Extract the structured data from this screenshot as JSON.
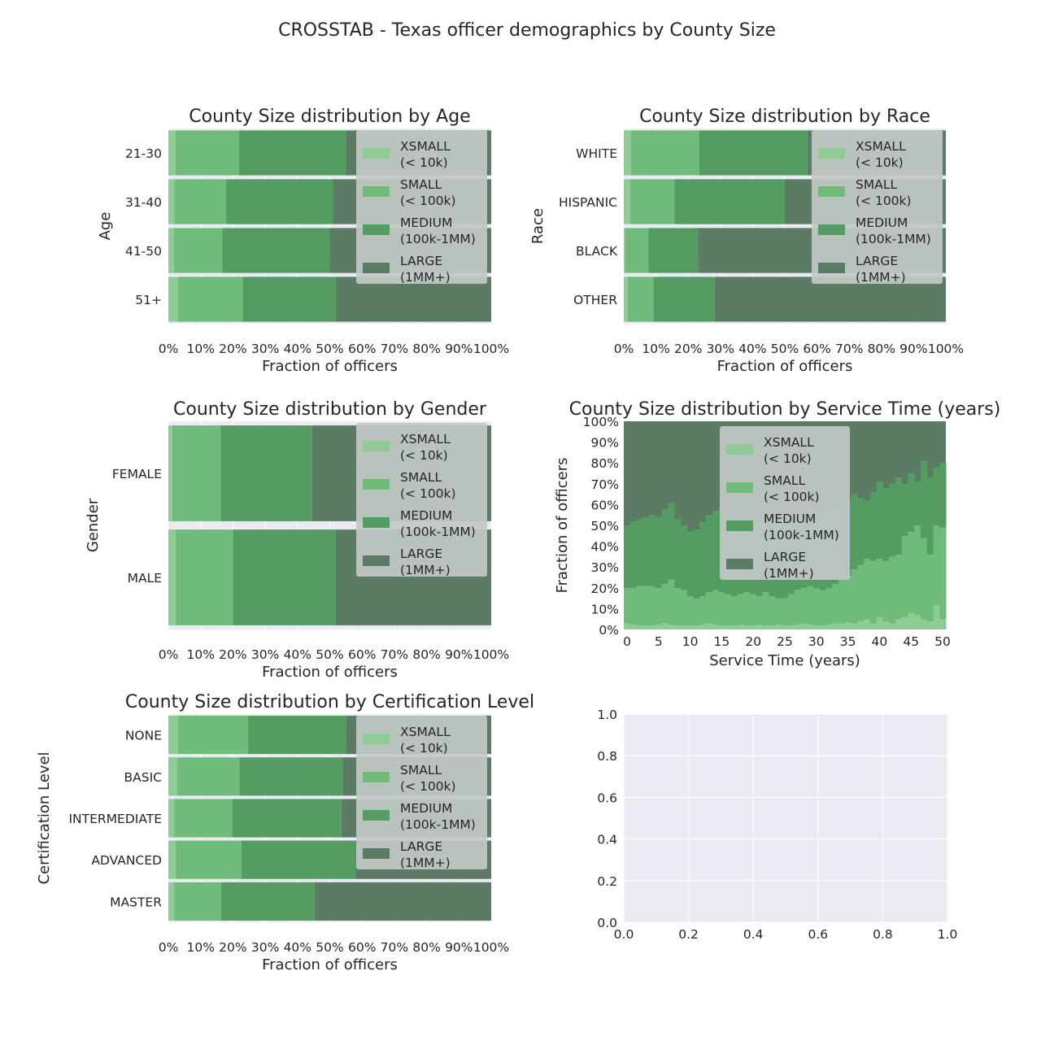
{
  "figure": {
    "suptitle": "CROSSTAB - Texas officer demographics by County Size"
  },
  "legend_labels": [
    [
      "XSMALL",
      "(< 10k)"
    ],
    [
      "SMALL",
      "(< 100k)"
    ],
    [
      "MEDIUM",
      "(100k-1MM)"
    ],
    [
      "LARGE",
      "(1MM+)"
    ]
  ],
  "colors": {
    "background": "#eaeaf2",
    "grid": "#ffffff",
    "xsmall": "#8ecb95",
    "small": "#6fbc7a",
    "medium": "#559c63",
    "large": "#5b7b64",
    "legend_bg": "#c2c8c6",
    "text": "#262626"
  },
  "chart_data": [
    {
      "type": "bar",
      "orientation": "horizontal",
      "stacked": true,
      "title": "County Size distribution by Age",
      "xlabel": "Fraction of officers",
      "ylabel": "Age",
      "categories": [
        "21-30",
        "31-40",
        "41-50",
        "51+"
      ],
      "series": [
        {
          "name": "XSMALL (< 10k)",
          "values": [
            0.022,
            0.018,
            0.017,
            0.03
          ]
        },
        {
          "name": "SMALL (< 100k)",
          "values": [
            0.197,
            0.16,
            0.15,
            0.2
          ]
        },
        {
          "name": "MEDIUM (100k-1MM)",
          "values": [
            0.331,
            0.331,
            0.333,
            0.289
          ]
        },
        {
          "name": "LARGE (1MM+)",
          "values": [
            0.45,
            0.491,
            0.5,
            0.481
          ]
        }
      ],
      "xlim": [
        0,
        1
      ],
      "xticks": [
        "0%",
        "10%",
        "20%",
        "30%",
        "40%",
        "50%",
        "60%",
        "70%",
        "80%",
        "90%",
        "100%"
      ],
      "legend": "top-right"
    },
    {
      "type": "bar",
      "orientation": "horizontal",
      "stacked": true,
      "title": "County Size distribution by Race",
      "xlabel": "Fraction of officers",
      "ylabel": "Race",
      "categories": [
        "WHITE",
        "HISPANIC",
        "BLACK",
        "OTHER"
      ],
      "series": [
        {
          "name": "XSMALL (< 10k)",
          "values": [
            0.022,
            0.02,
            0.005,
            0.012
          ]
        },
        {
          "name": "SMALL (< 100k)",
          "values": [
            0.212,
            0.137,
            0.072,
            0.08
          ]
        },
        {
          "name": "MEDIUM (100k-1MM)",
          "values": [
            0.336,
            0.343,
            0.153,
            0.19
          ]
        },
        {
          "name": "LARGE (1MM+)",
          "values": [
            0.43,
            0.5,
            0.77,
            0.718
          ]
        }
      ],
      "xlim": [
        0,
        1
      ],
      "xticks": [
        "0%",
        "10%",
        "20%",
        "30%",
        "40%",
        "50%",
        "60%",
        "70%",
        "80%",
        "90%",
        "100%"
      ],
      "legend": "top-right"
    },
    {
      "type": "bar",
      "orientation": "horizontal",
      "stacked": true,
      "title": "County Size distribution by Gender",
      "xlabel": "Fraction of officers",
      "ylabel": "Gender",
      "categories": [
        "FEMALE",
        "MALE"
      ],
      "series": [
        {
          "name": "XSMALL (< 10k)",
          "values": [
            0.012,
            0.023
          ]
        },
        {
          "name": "SMALL (< 100k)",
          "values": [
            0.15,
            0.177
          ]
        },
        {
          "name": "MEDIUM (100k-1MM)",
          "values": [
            0.283,
            0.318
          ]
        },
        {
          "name": "LARGE (1MM+)",
          "values": [
            0.555,
            0.482
          ]
        }
      ],
      "xlim": [
        0,
        1
      ],
      "xticks": [
        "0%",
        "10%",
        "20%",
        "30%",
        "40%",
        "50%",
        "60%",
        "70%",
        "80%",
        "90%",
        "100%"
      ],
      "legend": "top-right"
    },
    {
      "type": "area",
      "stacked": true,
      "title": "County Size distribution by Service Time (years)",
      "xlabel": "Service Time (years)",
      "ylabel": "Fraction of officers",
      "x": [
        0,
        1,
        2,
        3,
        4,
        5,
        6,
        7,
        8,
        9,
        10,
        11,
        12,
        13,
        14,
        15,
        16,
        17,
        18,
        19,
        20,
        21,
        22,
        23,
        24,
        25,
        26,
        27,
        28,
        29,
        30,
        31,
        32,
        33,
        34,
        35,
        36,
        37,
        38,
        39,
        40,
        41,
        42,
        43,
        44,
        45,
        46,
        47,
        48,
        49,
        50
      ],
      "xsmall_cum": [
        0.03,
        0.025,
        0.02,
        0.02,
        0.02,
        0.025,
        0.03,
        0.025,
        0.02,
        0.02,
        0.02,
        0.02,
        0.025,
        0.03,
        0.025,
        0.02,
        0.02,
        0.02,
        0.025,
        0.02,
        0.02,
        0.025,
        0.02,
        0.02,
        0.025,
        0.02,
        0.02,
        0.025,
        0.03,
        0.025,
        0.02,
        0.02,
        0.025,
        0.03,
        0.03,
        0.035,
        0.03,
        0.04,
        0.05,
        0.03,
        0.06,
        0.04,
        0.03,
        0.05,
        0.06,
        0.08,
        0.07,
        0.05,
        0.04,
        0.12,
        0.05
      ],
      "small_cum": [
        0.2,
        0.2,
        0.21,
        0.21,
        0.21,
        0.2,
        0.22,
        0.24,
        0.2,
        0.19,
        0.16,
        0.15,
        0.16,
        0.18,
        0.19,
        0.18,
        0.17,
        0.16,
        0.17,
        0.18,
        0.17,
        0.16,
        0.18,
        0.16,
        0.15,
        0.15,
        0.17,
        0.19,
        0.2,
        0.21,
        0.2,
        0.19,
        0.2,
        0.22,
        0.24,
        0.26,
        0.29,
        0.31,
        0.34,
        0.33,
        0.34,
        0.33,
        0.35,
        0.36,
        0.45,
        0.47,
        0.5,
        0.44,
        0.36,
        0.5,
        0.49
      ],
      "medium_cum": [
        0.5,
        0.52,
        0.53,
        0.54,
        0.55,
        0.54,
        0.58,
        0.61,
        0.53,
        0.5,
        0.47,
        0.48,
        0.52,
        0.55,
        0.57,
        0.58,
        0.57,
        0.55,
        0.56,
        0.58,
        0.55,
        0.54,
        0.55,
        0.56,
        0.54,
        0.53,
        0.55,
        0.56,
        0.57,
        0.58,
        0.57,
        0.56,
        0.58,
        0.59,
        0.6,
        0.62,
        0.65,
        0.63,
        0.62,
        0.66,
        0.71,
        0.68,
        0.7,
        0.73,
        0.7,
        0.75,
        0.71,
        0.81,
        0.73,
        0.78,
        0.8
      ],
      "series": [
        {
          "name": "XSMALL (< 10k)"
        },
        {
          "name": "SMALL (< 100k)"
        },
        {
          "name": "MEDIUM (100k-1MM)"
        },
        {
          "name": "LARGE (1MM+)"
        }
      ],
      "xlim": [
        0,
        50
      ],
      "ylim": [
        0,
        1
      ],
      "xticks": [
        "0",
        "5",
        "10",
        "15",
        "20",
        "25",
        "30",
        "35",
        "40",
        "45",
        "50"
      ],
      "yticks": [
        "0%",
        "10%",
        "20%",
        "30%",
        "40%",
        "50%",
        "60%",
        "70%",
        "80%",
        "90%",
        "100%"
      ],
      "legend": "upper-center"
    },
    {
      "type": "bar",
      "orientation": "horizontal",
      "stacked": true,
      "title": "County Size distribution by Certification Level",
      "xlabel": "Fraction of officers",
      "ylabel": "Certification Level",
      "categories": [
        "NONE",
        "BASIC",
        "INTERMEDIATE",
        "ADVANCED",
        "MASTER"
      ],
      "series": [
        {
          "name": "XSMALL (< 10k)",
          "values": [
            0.03,
            0.028,
            0.018,
            0.023,
            0.018
          ]
        },
        {
          "name": "SMALL (< 100k)",
          "values": [
            0.217,
            0.192,
            0.18,
            0.203,
            0.145
          ]
        },
        {
          "name": "MEDIUM (100k-1MM)",
          "values": [
            0.303,
            0.32,
            0.338,
            0.354,
            0.29
          ]
        },
        {
          "name": "LARGE (1MM+)",
          "values": [
            0.45,
            0.46,
            0.464,
            0.42,
            0.547
          ]
        }
      ],
      "xlim": [
        0,
        1
      ],
      "xticks": [
        "0%",
        "10%",
        "20%",
        "30%",
        "40%",
        "50%",
        "60%",
        "70%",
        "80%",
        "90%",
        "100%"
      ],
      "legend": "top-right"
    },
    {
      "type": "scatter",
      "title": "",
      "series": [],
      "xlim": [
        0,
        1
      ],
      "ylim": [
        0,
        1
      ],
      "xticks": [
        "0.0",
        "0.2",
        "0.4",
        "0.6",
        "0.8",
        "1.0"
      ],
      "yticks": [
        "0.0",
        "0.2",
        "0.4",
        "0.6",
        "0.8",
        "1.0"
      ]
    }
  ]
}
